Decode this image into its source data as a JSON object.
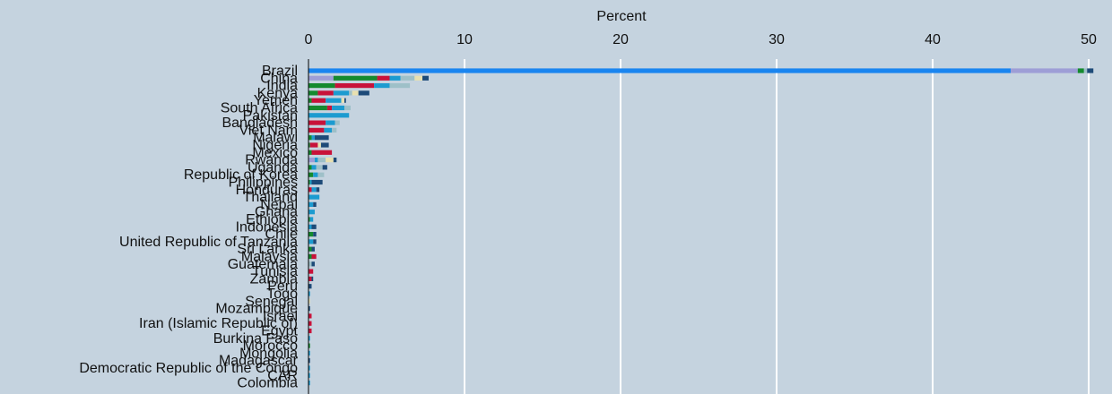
{
  "chart_data": {
    "type": "bar",
    "orientation": "horizontal",
    "stacked": true,
    "xlabel": "Percent",
    "xaxis_position": "top",
    "xlim": [
      0,
      50
    ],
    "xticks": [
      0,
      10,
      20,
      30,
      40,
      50
    ],
    "grid": true,
    "categories": [
      "Brazil",
      "China",
      "India",
      "Kenya",
      "Yemen",
      "South Africa",
      "Pakistan",
      "Bangladesh",
      "Viet Nam",
      "Malawi",
      "Nigeria",
      "Mexico",
      "Rwanda",
      "Uganda",
      "Republic of Korea",
      "Philippines",
      "Honduras",
      "Thailand",
      "Nepal",
      "Ghana",
      "Ethiopia",
      "Indonesia",
      "Chile",
      "United Republic of Tanzania",
      "Sri Lanka",
      "Malaysia",
      "Guatemala",
      "Tunisia",
      "Zambia",
      "Peru",
      "Togo",
      "Senegal",
      "Mozambique",
      "Israel",
      "Iran (Islamic Republic of)",
      "Egypt",
      "Burkina Faso",
      "Morocco",
      "Mongolia",
      "Madagascar",
      "Democratic Republic of the Congo",
      "CAR",
      "Colombia"
    ],
    "series_colors": [
      "#1a85f0",
      "#9e9ed6",
      "#148a2e",
      "#c8123a",
      "#1c9bd0",
      "#9ec0c8",
      "#e8e0b0",
      "#1d4a78"
    ],
    "rows": [
      [
        45.0,
        4.3,
        0.4,
        0,
        0,
        0.2,
        0,
        0.4
      ],
      [
        0,
        1.6,
        2.8,
        0.8,
        0.7,
        0.9,
        0.5,
        0.4
      ],
      [
        0,
        0,
        1.7,
        2.5,
        1.0,
        1.3,
        0,
        0
      ],
      [
        0,
        0,
        0.6,
        1.0,
        1.0,
        0.2,
        0.4,
        0.7
      ],
      [
        0,
        0,
        0.2,
        0.9,
        1.0,
        0,
        0.2,
        0.1
      ],
      [
        0,
        0,
        1.2,
        0.3,
        0.8,
        0.4,
        0,
        0
      ],
      [
        0,
        0,
        0,
        0,
        2.6,
        0,
        0,
        0
      ],
      [
        0,
        0,
        0,
        1.1,
        0.6,
        0.3,
        0,
        0
      ],
      [
        0,
        0,
        0,
        1.0,
        0.5,
        0.3,
        0,
        0
      ],
      [
        0,
        0,
        0.2,
        0,
        0.2,
        0,
        0,
        0.9
      ],
      [
        0,
        0,
        0.1,
        0.5,
        0,
        0,
        0.2,
        0.5
      ],
      [
        0,
        0,
        0.2,
        1.3,
        0,
        0,
        0,
        0
      ],
      [
        0,
        0.4,
        0,
        0,
        0.2,
        0.5,
        0.5,
        0.2
      ],
      [
        0,
        0,
        0.2,
        0,
        0.3,
        0.4,
        0,
        0.3
      ],
      [
        0,
        0,
        0.3,
        0,
        0.3,
        0.4,
        0,
        0
      ],
      [
        0,
        0,
        0.1,
        0,
        0.1,
        0,
        0,
        0.7
      ],
      [
        0,
        0,
        0,
        0.2,
        0.3,
        0,
        0,
        0.2
      ],
      [
        0,
        0,
        0,
        0,
        0.7,
        0,
        0,
        0
      ],
      [
        0,
        0,
        0,
        0,
        0.3,
        0,
        0,
        0.2
      ],
      [
        0,
        0,
        0,
        0,
        0.4,
        0,
        0,
        0
      ],
      [
        0,
        0,
        0.1,
        0,
        0.2,
        0,
        0,
        0
      ],
      [
        0,
        0,
        0,
        0,
        0.2,
        0,
        0,
        0.3
      ],
      [
        0,
        0,
        0.3,
        0,
        0,
        0,
        0,
        0.2
      ],
      [
        0,
        0,
        0,
        0,
        0.3,
        0,
        0,
        0.2
      ],
      [
        0,
        0,
        0.2,
        0,
        0,
        0,
        0,
        0.2
      ],
      [
        0,
        0,
        0.2,
        0.3,
        0,
        0,
        0,
        0
      ],
      [
        0,
        0,
        0,
        0,
        0,
        0.2,
        0,
        0.2
      ],
      [
        0,
        0,
        0,
        0.3,
        0,
        0,
        0,
        0
      ],
      [
        0,
        0,
        0,
        0.2,
        0,
        0,
        0,
        0.1
      ],
      [
        0,
        0,
        0,
        0,
        0,
        0,
        0,
        0.2
      ],
      [
        0,
        0,
        0,
        0,
        0.1,
        0,
        0,
        0
      ],
      [
        0,
        0,
        0,
        0,
        0,
        0,
        0.1,
        0
      ],
      [
        0,
        0,
        0,
        0,
        0,
        0,
        0,
        0.1
      ],
      [
        0,
        0,
        0,
        0.2,
        0,
        0,
        0,
        0
      ],
      [
        0,
        0,
        0,
        0.2,
        0,
        0,
        0,
        0
      ],
      [
        0,
        0,
        0,
        0.2,
        0,
        0,
        0,
        0
      ],
      [
        0,
        0,
        0,
        0,
        0.1,
        0,
        0,
        0
      ],
      [
        0,
        0,
        0.1,
        0,
        0,
        0,
        0,
        0
      ],
      [
        0,
        0,
        0,
        0,
        0.1,
        0,
        0,
        0
      ],
      [
        0,
        0,
        0,
        0,
        0,
        0,
        0,
        0.1
      ],
      [
        0,
        0,
        0,
        0,
        0.1,
        0,
        0,
        0
      ],
      [
        0,
        0,
        0,
        0,
        0.1,
        0,
        0,
        0
      ],
      [
        0,
        0,
        0,
        0,
        0.1,
        0,
        0,
        0
      ]
    ]
  }
}
